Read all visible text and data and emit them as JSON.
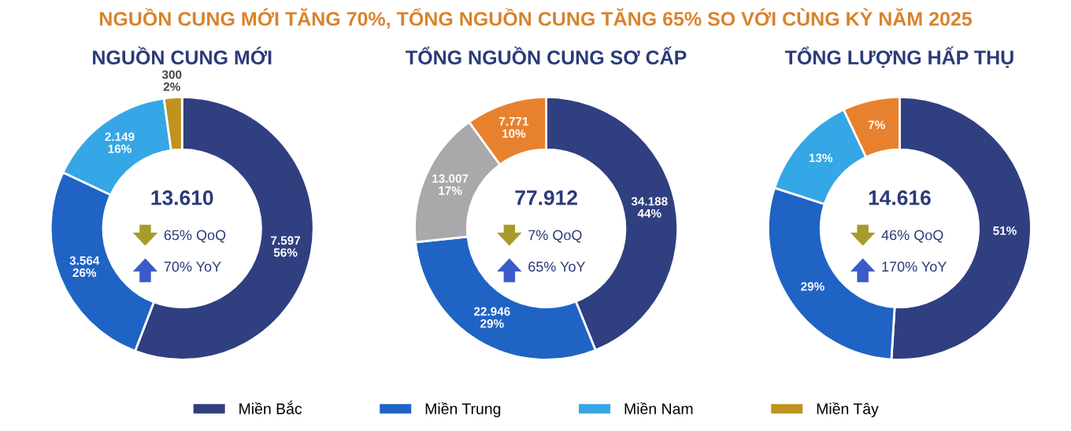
{
  "chart_data": [
    {
      "type": "donut",
      "title": "NGUỒN CUNG MỚI",
      "categories": [
        "Miền Bắc",
        "Miền Trung",
        "Miền Nam",
        "Miền Tây"
      ],
      "values": [
        7597,
        3564,
        2149,
        300
      ],
      "colors": [
        "#2f3f80",
        "#1f63c4",
        "#35a6e6",
        "#c0921e"
      ],
      "value_labels": [
        "7.597\n56%",
        "3.564\n26%",
        "2.149\n16%",
        "300\n2%"
      ],
      "annotations": [
        "NGUỒN CUNG MỚI TĂNG 70%, TỔNG NGUỒN CUNG TĂNG 65% SO VỚI CÙNG KỲ NĂM 2025",
        "13.610",
        "65% QoQ",
        "70% YoY"
      ],
      "legend": "bottom"
    },
    {
      "type": "donut",
      "title": "TỔNG NGUỒN CUNG SƠ CẤP",
      "categories": [
        null,
        null,
        null,
        null
      ],
      "values": [
        34188,
        22946,
        13007,
        7771
      ],
      "colors": [
        "#2f3f80",
        "#1f63c4",
        "#a9a9ab",
        "#e8812e"
      ],
      "value_labels": [
        "34.188\n44%",
        "22.946\n29%",
        "13.007\n17%",
        "7.771\n10%"
      ],
      "annotations": [
        "77.912",
        "7% QoQ",
        "65% YoY"
      ]
    },
    {
      "type": "donut",
      "title": "TỔNG LƯỢNG HẤP THỤ",
      "categories": [
        null,
        null,
        null,
        null
      ],
      "values": [
        51,
        29,
        13,
        7
      ],
      "colors": [
        "#2f3f80",
        "#1f63c4",
        "#35a6e6",
        "#e8812e"
      ],
      "value_labels": [
        "51%",
        "29%",
        "13%",
        "7%"
      ],
      "annotations": [
        "14.616",
        "46% QoQ",
        "170% YoY"
      ]
    }
  ]
}
